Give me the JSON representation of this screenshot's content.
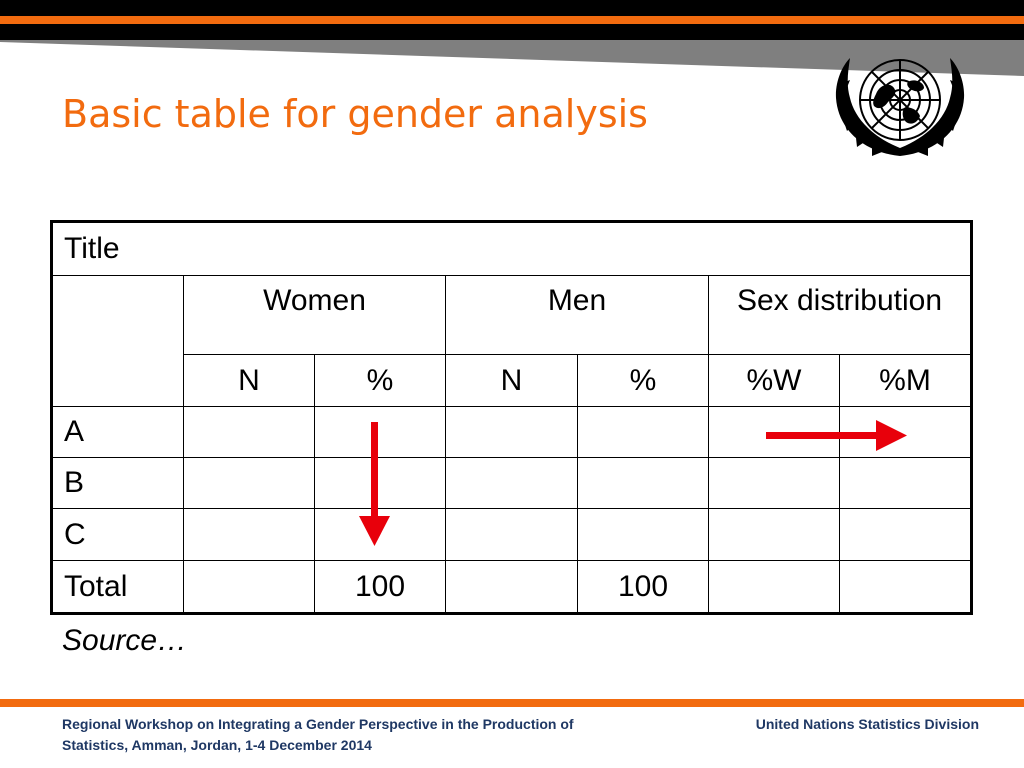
{
  "colors": {
    "accent": "#f26b0f",
    "arrow": "#e8000b",
    "footer_text": "#1f3864",
    "swoosh": "#7f7f7f"
  },
  "slide": {
    "title": "Basic table for gender analysis"
  },
  "emblem": {
    "icon": "un-emblem-icon"
  },
  "table": {
    "title": "Title",
    "groups": [
      "Women",
      "Men",
      "Sex distribution"
    ],
    "subheaders": [
      "N",
      "%",
      "N",
      "%",
      "%W",
      "%M"
    ],
    "rows": [
      {
        "label": "A",
        "cells": [
          "",
          "",
          "",
          "",
          "",
          ""
        ]
      },
      {
        "label": "B",
        "cells": [
          "",
          "",
          "",
          "",
          "",
          ""
        ]
      },
      {
        "label": "C",
        "cells": [
          "",
          "",
          "",
          "",
          "",
          ""
        ]
      },
      {
        "label": "Total",
        "cells": [
          "",
          "100",
          "",
          "100",
          "",
          ""
        ]
      }
    ],
    "source": "Source…"
  },
  "annotations": {
    "down_arrow": "arrow-down-icon",
    "right_arrow": "arrow-right-icon"
  },
  "footer": {
    "left": "Regional Workshop on Integrating a Gender Perspective in the Production of Statistics, Amman, Jordan, 1-4 December 2014",
    "right": "United Nations Statistics Division"
  }
}
